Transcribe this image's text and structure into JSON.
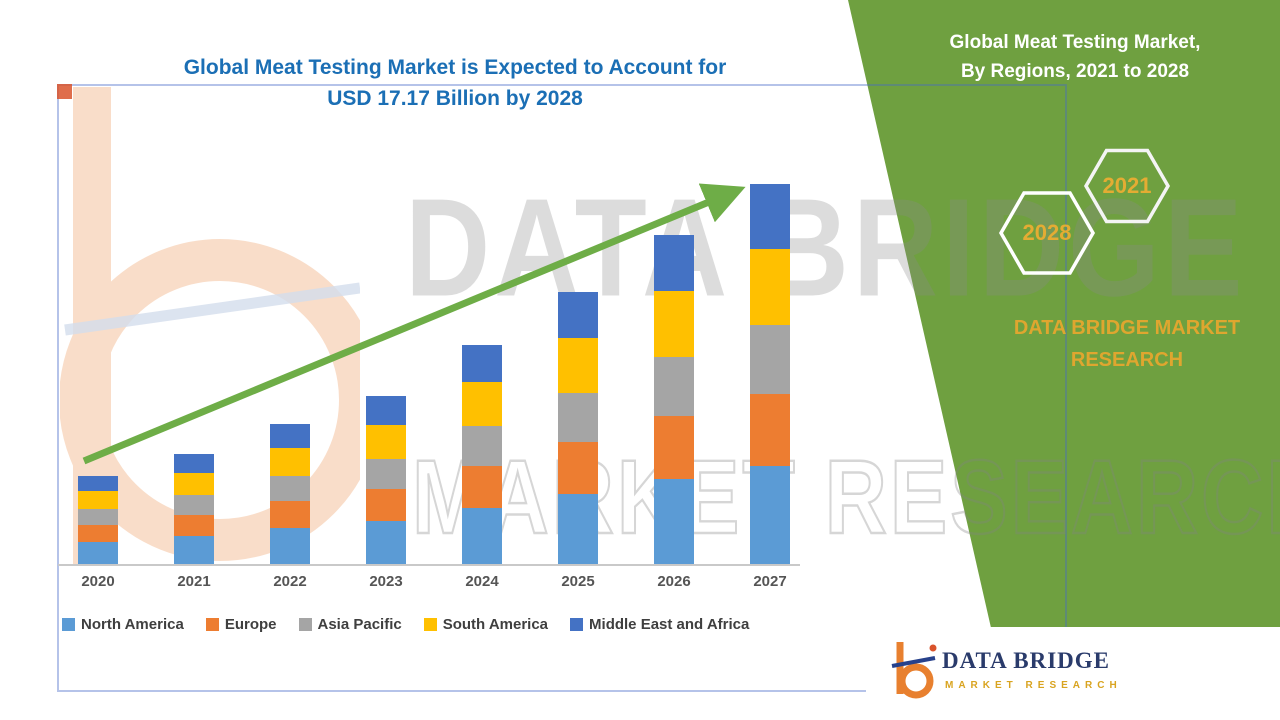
{
  "main_title": {
    "line1": "Global Meat Testing Market is Expected to Account for",
    "line2": "USD 17.17 Billion by 2028"
  },
  "side_panel": {
    "title_line1": "Global Meat Testing Market,",
    "title_line2": "By Regions, 2021 to 2028",
    "hexagons": [
      {
        "label": "2028"
      },
      {
        "label": "2021"
      }
    ],
    "brand_line1": "DATA BRIDGE MARKET",
    "brand_line2": "RESEARCH"
  },
  "watermark": {
    "big_text": "DATA BRIDGE",
    "outline_text": "MARKET RESEARCH"
  },
  "footer_logo": {
    "brand": "DATA BRIDGE",
    "tagline": "MARKET RESEARCH"
  },
  "colors": {
    "title_blue": "#1b6fb5",
    "arrow_green": "#6ead47",
    "panel_green": "#6fa040",
    "gold": "#dfa62f",
    "logo_navy": "#2a3b6b",
    "logo_orange": "#e8802f"
  },
  "chart_data": {
    "type": "bar",
    "stacked": true,
    "title": "Global Meat Testing Market is Expected to Account for USD 17.17 Billion by 2028",
    "unit": "USD Billion (estimated from bar heights; no value axis shown)",
    "categories": [
      "2020",
      "2021",
      "2022",
      "2023",
      "2024",
      "2025",
      "2026",
      "2027"
    ],
    "series": [
      {
        "name": "North America",
        "color": "#5B9BD5",
        "values": [
          0.95,
          1.2,
          1.5,
          1.8,
          2.35,
          2.9,
          3.5,
          4.05
        ]
      },
      {
        "name": "Europe",
        "color": "#ED7D31",
        "values": [
          0.68,
          0.87,
          1.1,
          1.31,
          1.71,
          2.13,
          2.57,
          2.96
        ]
      },
      {
        "name": "Asia Pacific",
        "color": "#A5A5A5",
        "values": [
          0.65,
          0.83,
          1.04,
          1.24,
          1.62,
          2.02,
          2.43,
          2.81
        ]
      },
      {
        "name": "South America",
        "color": "#FFC000",
        "values": [
          0.72,
          0.92,
          1.16,
          1.38,
          1.8,
          2.24,
          2.7,
          3.12
        ]
      },
      {
        "name": "Middle East and Africa",
        "color": "#4472C4",
        "values": [
          0.61,
          0.78,
          0.99,
          1.17,
          1.53,
          1.9,
          2.3,
          2.65
        ]
      }
    ],
    "totals": [
      3.61,
      4.6,
      5.79,
      6.9,
      9.01,
      11.19,
      13.5,
      15.59
    ],
    "trend_arrow": true,
    "legend_position": "bottom",
    "axis": {
      "x_visible": true,
      "y_visible": false,
      "gridlines": false
    }
  }
}
